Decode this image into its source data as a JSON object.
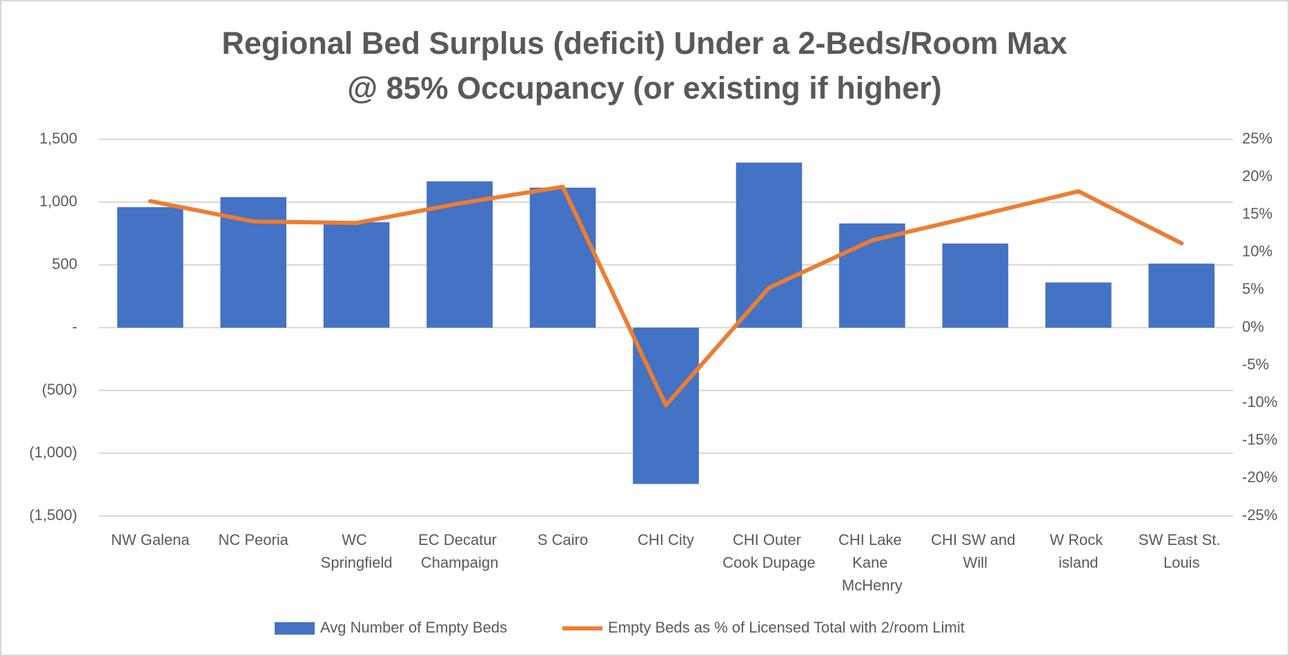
{
  "chart_data": {
    "type": "bar_line",
    "title": [
      "Regional Bed Surplus (deficit) Under a 2-Beds/Room Max",
      "@ 85% Occupancy (or existing if higher)"
    ],
    "categories": [
      "NW Galena",
      "NC Peoria",
      "WC Springfield",
      "EC Decatur Champaign",
      "S Cairo",
      "CHI City",
      "CHI Outer Cook Dupage",
      "CHI Lake Kane McHenry",
      "CHI SW and Will",
      "W Rock island",
      "SW East St. Louis"
    ],
    "series": [
      {
        "name": "Avg Number of Empty Beds",
        "type": "bar",
        "color": "#4472c4",
        "axis": "y",
        "values": [
          960,
          1040,
          840,
          1165,
          1115,
          -1245,
          1315,
          830,
          670,
          360,
          510
        ]
      },
      {
        "name": "Empty Beds as % of Licensed Total with 2/room Limit",
        "type": "line",
        "color": "#ed7d31",
        "axis": "y2",
        "values": [
          16.8,
          14.1,
          13.9,
          16.5,
          18.7,
          -10.3,
          5.3,
          11.6,
          14.8,
          18.1,
          11.2
        ]
      }
    ],
    "ylim": [
      -1500,
      1500
    ],
    "yticks": [
      {
        "value": -1500,
        "label": "(1,500)"
      },
      {
        "value": -1000,
        "label": "(1,000)"
      },
      {
        "value": -500,
        "label": "(500)"
      },
      {
        "value": 0,
        "label": "-"
      },
      500,
      {
        "value": 1000,
        "label": "1,000"
      },
      {
        "value": 1500,
        "label": "1,500"
      }
    ],
    "y2lim": [
      -25,
      25
    ],
    "y2ticks": [
      {
        "value": -25,
        "label": "-25%"
      },
      {
        "value": -20,
        "label": "-20%"
      },
      {
        "value": -15,
        "label": "-15%"
      },
      {
        "value": -10,
        "label": "-10%"
      },
      {
        "value": -5,
        "label": "-5%"
      },
      {
        "value": 0,
        "label": "0%"
      },
      {
        "value": 5,
        "label": "5%"
      },
      {
        "value": 10,
        "label": "10%"
      },
      {
        "value": 15,
        "label": "15%"
      },
      {
        "value": 20,
        "label": "20%"
      },
      {
        "value": 25,
        "label": "25%"
      }
    ],
    "grid": true,
    "legend": "bottom"
  }
}
